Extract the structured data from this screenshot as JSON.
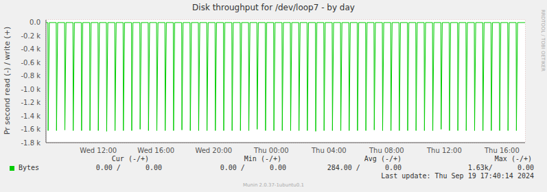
{
  "chart_data": {
    "type": "line",
    "title": "Disk throughput for /dev/loop7 - by day",
    "y_label": "Pr second read (-) / write (+)",
    "x": [
      8.37,
      8.5,
      8.52,
      8.6,
      9.08,
      9.1,
      9.18,
      9.66,
      9.68,
      9.76,
      10.24,
      10.26,
      10.34,
      10.82,
      10.84,
      10.92,
      11.4,
      11.42,
      11.5,
      11.98,
      12.0,
      12.08,
      12.56,
      12.58,
      12.66,
      13.14,
      13.16,
      13.24,
      13.72,
      13.74,
      13.82,
      14.3,
      14.32,
      14.4,
      14.88,
      14.9,
      14.98,
      15.46,
      15.48,
      15.56,
      16.04,
      16.06,
      16.14,
      16.62,
      16.64,
      16.72,
      17.2,
      17.22,
      17.3,
      17.78,
      17.8,
      17.88,
      18.36,
      18.38,
      18.46,
      18.94,
      18.96,
      19.04,
      19.52,
      19.54,
      19.62,
      20.1,
      20.12,
      20.2,
      20.68,
      20.7,
      20.78,
      21.26,
      21.28,
      21.36,
      21.84,
      21.86,
      21.94,
      22.42,
      22.44,
      22.52,
      23.0,
      23.02,
      23.1,
      23.58,
      23.6,
      23.68,
      24.16,
      24.18,
      24.26,
      24.74,
      24.76,
      24.84,
      25.32,
      25.34,
      25.42,
      25.9,
      25.92,
      26.0,
      26.48,
      26.5,
      26.58,
      27.06,
      27.08,
      27.16,
      27.64,
      27.66,
      27.74,
      28.22,
      28.24,
      28.32,
      28.8,
      28.82,
      28.9,
      29.38,
      29.4,
      29.48,
      29.96,
      29.98,
      30.06,
      30.54,
      30.56,
      30.64,
      31.12,
      31.14,
      31.22,
      31.7,
      31.72,
      31.8,
      32.28,
      32.3,
      32.38,
      32.86,
      32.88,
      32.96,
      33.44,
      33.46,
      33.54,
      34.02,
      34.04,
      34.12,
      34.6,
      34.62,
      34.7,
      35.18,
      35.2,
      35.28,
      35.76,
      35.78,
      35.86,
      36.34,
      36.36,
      36.44,
      36.92,
      36.94,
      37.02,
      37.5,
      37.52,
      37.6,
      38.08,
      38.1,
      38.18,
      38.66,
      38.68,
      38.76,
      39.24,
      39.26,
      39.34,
      39.82,
      39.84,
      39.92,
      40.4,
      40.42,
      40.5,
      40.98,
      41.0,
      41.08,
      41.6
    ],
    "series": [
      {
        "name": "Bytes",
        "color": "#00cc00",
        "values": [
          0,
          0,
          -1620,
          0,
          0,
          -1620,
          0,
          0,
          -1610,
          0,
          0,
          -1620,
          0,
          0,
          -1620,
          0,
          0,
          -1620,
          0,
          0,
          -1620,
          0,
          0,
          -1630,
          0,
          0,
          -1620,
          0,
          0,
          -1620,
          0,
          0,
          -1620,
          0,
          0,
          -1600,
          0,
          0,
          -1620,
          0,
          0,
          -1620,
          0,
          0,
          -1620,
          0,
          0,
          -1620,
          0,
          0,
          -1610,
          0,
          0,
          -1620,
          0,
          0,
          -1620,
          0,
          0,
          -1620,
          0,
          0,
          -1620,
          0,
          0,
          -1620,
          0,
          0,
          -1620,
          0,
          0,
          -1620,
          0,
          0,
          -1620,
          0,
          0,
          -1600,
          0,
          0,
          -1620,
          0,
          0,
          -1620,
          0,
          0,
          -1620,
          0,
          0,
          -1620,
          0,
          0,
          -1620,
          0,
          0,
          -1620,
          0,
          0,
          -1630,
          0,
          0,
          -1620,
          0,
          0,
          -1620,
          0,
          0,
          -1620,
          0,
          0,
          -1620,
          0,
          0,
          -1620,
          0,
          0,
          -1620,
          0,
          0,
          -1610,
          0,
          0,
          -1620,
          0,
          0,
          -1620,
          0,
          0,
          -1620,
          0,
          0,
          -1620,
          0,
          0,
          -1620,
          0,
          0,
          -1620,
          0,
          0,
          -1620,
          0,
          0,
          -1600,
          0,
          0,
          -1620,
          0,
          0,
          -1620,
          0,
          0,
          -1620,
          0,
          0,
          -1620,
          0,
          0,
          -1620,
          0,
          0,
          -1620,
          0,
          0,
          -1620,
          0,
          0,
          -1620,
          0,
          0,
          -1620,
          0,
          0
        ]
      }
    ],
    "xlim": [
      8.37,
      41.6
    ],
    "xticks": [
      {
        "value": 12,
        "label": "Wed 12:00"
      },
      {
        "value": 16,
        "label": "Wed 16:00"
      },
      {
        "value": 20,
        "label": "Wed 20:00"
      },
      {
        "value": 24,
        "label": "Thu 00:00"
      },
      {
        "value": 28,
        "label": "Thu 04:00"
      },
      {
        "value": 32,
        "label": "Thu 08:00"
      },
      {
        "value": 36,
        "label": "Thu 12:00"
      },
      {
        "value": 40,
        "label": "Thu 16:00"
      }
    ],
    "ylim": [
      -1800,
      40
    ],
    "yticks": [
      {
        "value": 0,
        "label": "0.0"
      },
      {
        "value": -200,
        "label": "-0.2 k"
      },
      {
        "value": -400,
        "label": "-0.4 k"
      },
      {
        "value": -600,
        "label": "-0.6 k"
      },
      {
        "value": -800,
        "label": "-0.8 k"
      },
      {
        "value": -1000,
        "label": "-1.0 k"
      },
      {
        "value": -1200,
        "label": "-1.2 k"
      },
      {
        "value": -1400,
        "label": "-1.4 k"
      },
      {
        "value": -1600,
        "label": "-1.6 k"
      },
      {
        "value": -1800,
        "label": "-1.8 k"
      }
    ],
    "grid": true,
    "stats": {
      "headers": [
        "Cur (-/+)",
        "Min (-/+)",
        "Avg (-/+)",
        "Max (-/+)"
      ],
      "values": [
        "0.00 /      0.00",
        "0.00 /      0.00",
        "284.00 /      0.00",
        "1.63k/      0.00"
      ]
    },
    "footer": "Last update: Thu Sep 19 17:40:14 2024",
    "credit": "Munin 2.0.37-1ubuntu0.1",
    "watermark": "RRDTOOL / TOBI OETIKER"
  }
}
